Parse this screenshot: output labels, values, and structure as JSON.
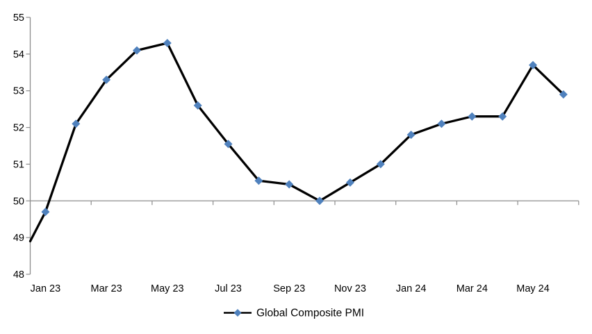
{
  "page": {
    "background": "#FFFFFF",
    "title": ""
  },
  "chart_data": {
    "type": "line",
    "title": "",
    "xlabel": "",
    "ylabel": "",
    "categories": [
      "Dec 22",
      "Jan 23",
      "Feb 23",
      "Mar 23",
      "Apr 23",
      "May 23",
      "Jun 23",
      "Jul 23",
      "Aug 23",
      "Sep 23",
      "Oct 23",
      "Nov 23",
      "Dec 23",
      "Jan 24",
      "Feb 24",
      "Mar 24",
      "Apr 24",
      "May 24",
      "Jun 24"
    ],
    "series": [
      {
        "name": "Global Composite PMI",
        "values": [
          48.9,
          49.7,
          52.1,
          53.3,
          54.1,
          54.3,
          52.6,
          51.55,
          50.55,
          50.45,
          50.0,
          50.5,
          51.0,
          51.8,
          52.1,
          52.3,
          52.3,
          53.7,
          52.9
        ],
        "line_color": "#000000",
        "marker": "diamond",
        "marker_color": "#4F81BD"
      }
    ],
    "x_axis": {
      "tick_labels": [
        "Jan 23",
        "Mar 23",
        "May 23",
        "Jul 23",
        "Sep 23",
        "Nov 23",
        "Jan 24",
        "Mar 24",
        "May 24"
      ],
      "labels_every_n_categories": 2,
      "first_point_on_axis_marker_hidden": true
    },
    "y_axis": {
      "min": 48,
      "max": 55,
      "interval": 1,
      "tick_labels": [
        "55",
        "54",
        "53",
        "52",
        "51",
        "50",
        "49",
        "48"
      ],
      "category_axis_crosses_at": 50
    },
    "ylim": [
      48,
      55
    ],
    "grid": false,
    "legend": {
      "position": "bottom-center",
      "label": "Global Composite PMI"
    },
    "colors": {
      "axis": "#8C8C8C",
      "text": "#000000",
      "series_line": "#000000",
      "marker": "#4F81BD",
      "background": "#FFFFFF"
    }
  }
}
